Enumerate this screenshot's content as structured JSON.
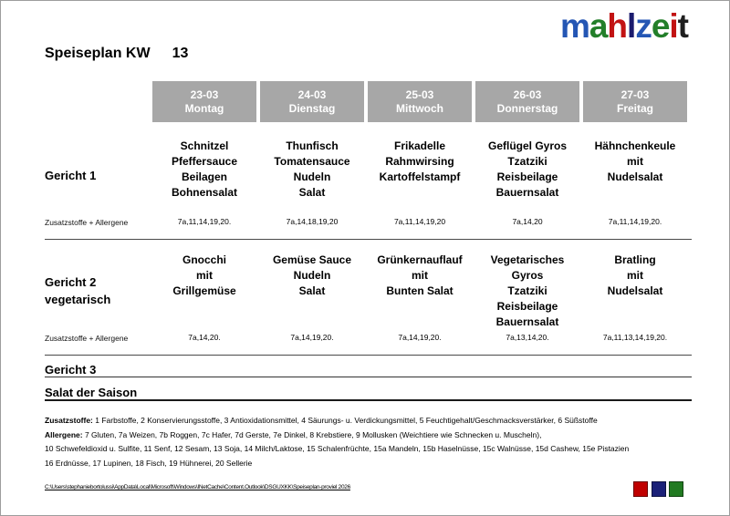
{
  "page_title": {
    "label": "Speiseplan KW",
    "week": "13"
  },
  "logo": {
    "letters": [
      {
        "char": "m",
        "color": "#2456b4"
      },
      {
        "char": "a",
        "color": "#237f2a"
      },
      {
        "char": "h",
        "color": "#c21313"
      },
      {
        "char": "l",
        "color": "#1b1b6e"
      },
      {
        "char": "z",
        "color": "#2456b4"
      },
      {
        "char": "e",
        "color": "#237f2a"
      },
      {
        "char": "i",
        "color": "#c21313"
      },
      {
        "char": "t",
        "color": "#1f1f1f"
      }
    ]
  },
  "colors": {
    "header_gray": "#a7a7a7"
  },
  "table": {
    "days": [
      {
        "date": "23-03",
        "name": "Montag"
      },
      {
        "date": "24-03",
        "name": "Dienstag"
      },
      {
        "date": "25-03",
        "name": "Mittwoch"
      },
      {
        "date": "26-03",
        "name": "Donnerstag"
      },
      {
        "date": "27-03",
        "name": "Freitag"
      }
    ],
    "allergen_row_label": "Zusatzstoffe + Allergene",
    "gericht1": {
      "label": "Gericht 1",
      "meals": [
        "Schnitzel\nPfeffersauce\nBeilagen\nBohnensalat",
        "Thunfisch\nTomatensauce\nNudeln\nSalat",
        "Frikadelle\nRahmwirsing\nKartoffelstampf",
        "Geflügel Gyros\nTzatziki\nReisbeilage\nBauernsalat",
        "Hähnchenkeule\nmit\nNudelsalat"
      ],
      "allergens": [
        "7a,11,14,19,20.",
        "7a,14,18,19,20",
        "7a,11,14,19,20",
        "7a,14,20",
        "7a,11,14,19,20."
      ]
    },
    "gericht2": {
      "label": "Gericht 2\nvegetarisch",
      "meals": [
        "Gnocchi\nmit\nGrillgemüse",
        "Gemüse Sauce\nNudeln\nSalat",
        "Grünkernauflauf\nmit\nBunten Salat",
        "Vegetarisches\nGyros\nTzatziki\nReisbeilage\nBauernsalat",
        "Bratling\nmit\nNudelsalat"
      ],
      "allergens": [
        "7a,14,20.",
        "7a,14,19,20.",
        "7a,14,19,20.",
        "7a,13,14,20.",
        "7a,11,13,14,19,20."
      ]
    },
    "gericht3_label": "Gericht 3",
    "salat_label": "Salat der Saison"
  },
  "legend": {
    "zusatzstoffe_label": "Zusatzstoffe:",
    "zusatzstoffe_text": " 1 Farbstoffe, 2 Konservierungsstoffe, 3 Antioxidationsmittel, 4 Säurungs- u. Verdickungsmittel, 5 Feuchtigehalt/Geschmacksverstärker, 6 Süßstoffe",
    "allergene_label": "Allergene:",
    "allergene_text": " 7 Gluten, 7a Weizen, 7b Roggen, 7c Hafer, 7d Gerste, 7e Dinkel, 8 Krebstiere, 9 Mollusken (Weichtiere wie Schnecken u. Muscheln),",
    "allergene_line2": "10 Schwefeldioxid u. Sulfite, 11 Senf, 12 Sesam, 13 Soja, 14 Milch/Laktose, 15 Schalenfrüchte, 15a Mandeln, 15b Haselnüsse, 15c Walnüsse, 15d Cashew, 15e Pistazien",
    "allergene_line3": "16 Erdnüsse, 17 Lupinen, 18 Fisch, 19 Hühnerei, 20 Sellerie"
  },
  "file_path": "C:\\Users\\stephaniebortolussi\\AppData\\Local\\Microsoft\\Windows\\INetCache\\Content.Outlook\\DSGUXKK\\Speiseplan-proviel 2026",
  "footer_squares": [
    {
      "name": "red",
      "color": "#c00000"
    },
    {
      "name": "blue",
      "color": "#1b2178"
    },
    {
      "name": "green",
      "color": "#217a21"
    }
  ]
}
